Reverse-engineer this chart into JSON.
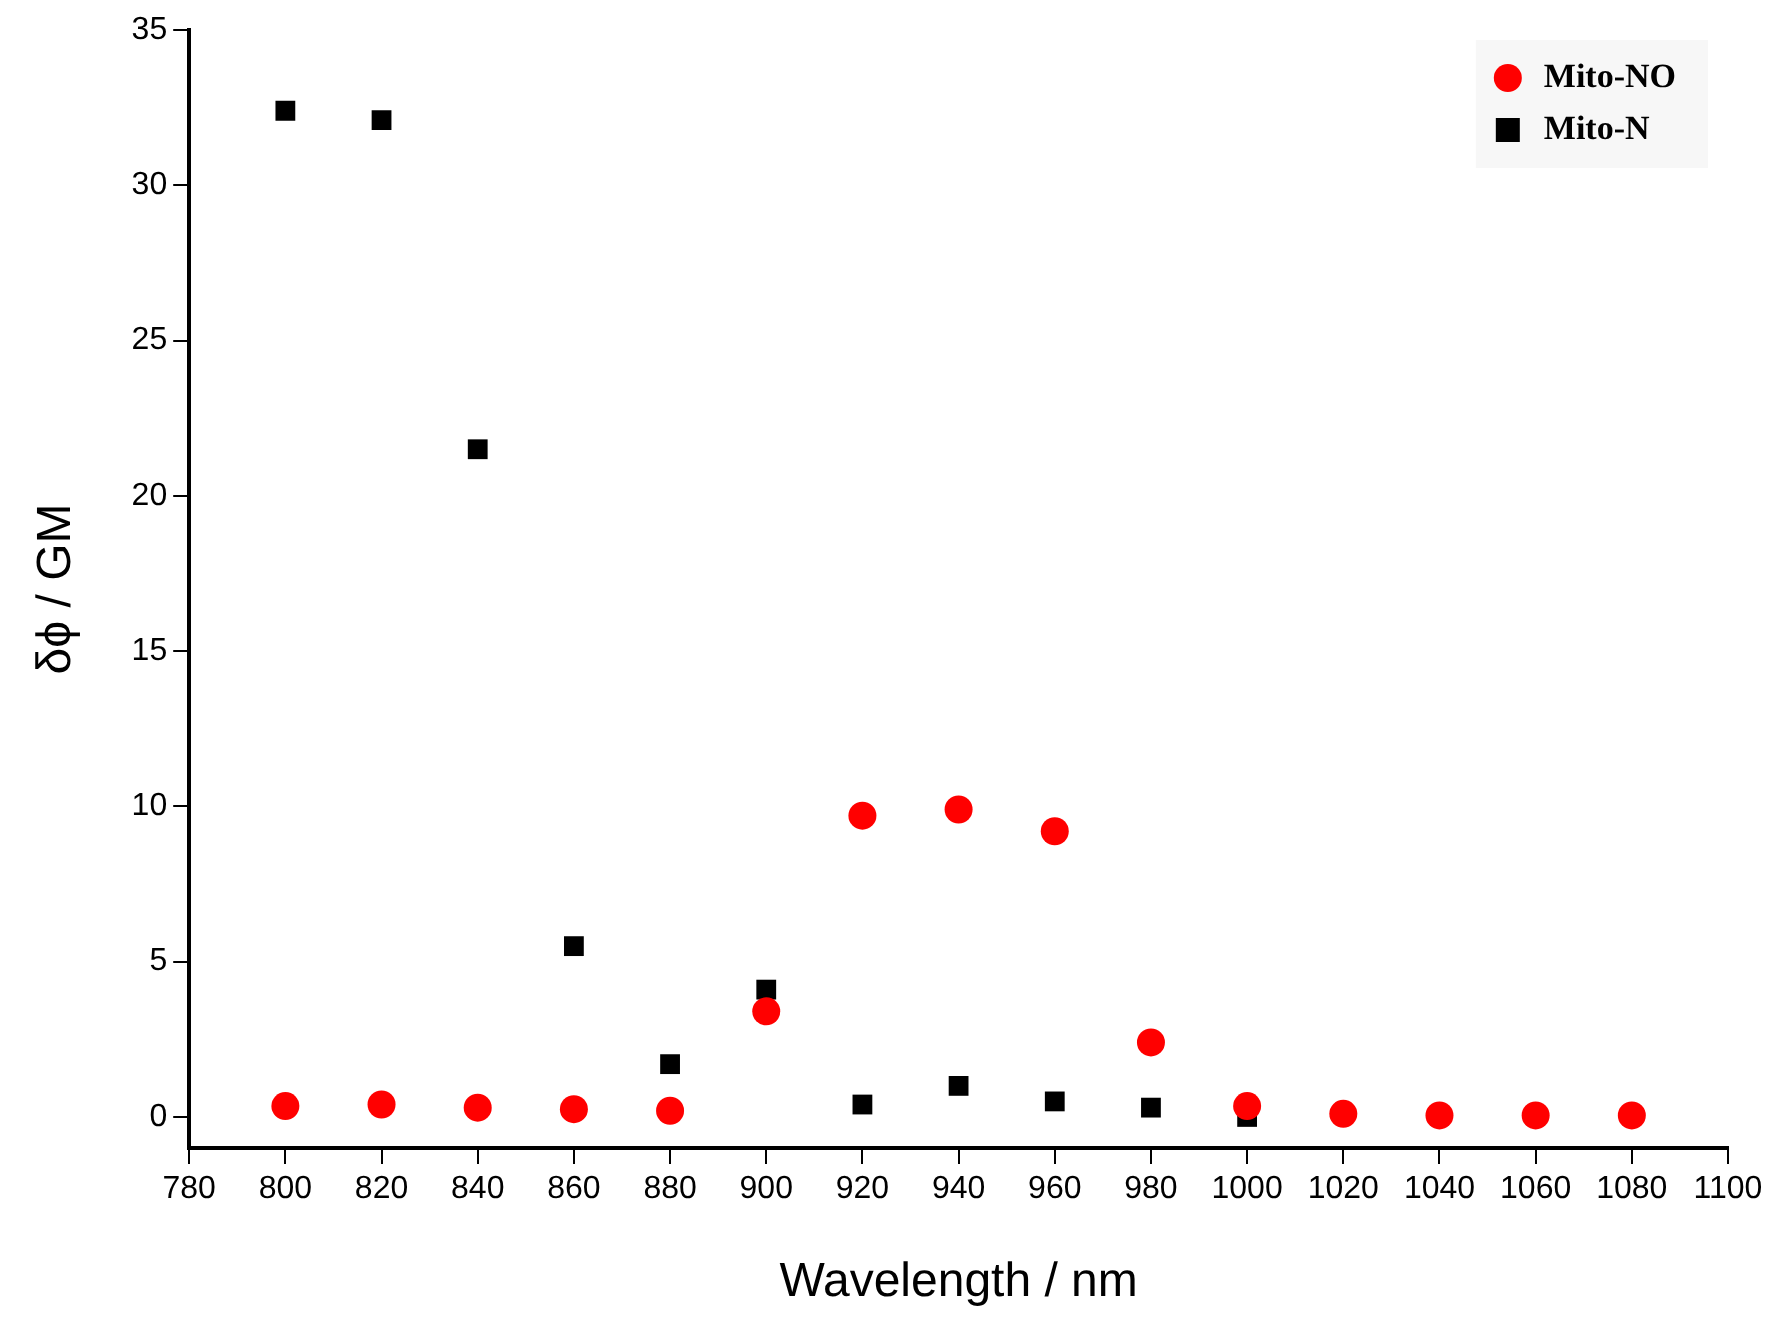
{
  "chart_data": {
    "type": "scatter",
    "xlabel": "Wavelength / nm",
    "ylabel": "δϕ / GM",
    "x": [
      800,
      820,
      840,
      860,
      880,
      900,
      920,
      940,
      960,
      980,
      1000,
      1020,
      1040,
      1060,
      1080
    ],
    "series": [
      {
        "name": "Mito-NO",
        "color": "#ff0000",
        "marker": "circle",
        "values": [
          0.35,
          0.4,
          0.3,
          0.25,
          0.2,
          3.4,
          9.7,
          9.9,
          9.2,
          2.4,
          0.35,
          0.1,
          0.05,
          0.05,
          0.05
        ]
      },
      {
        "name": "Mito-N",
        "color": "#000000",
        "marker": "square",
        "values": [
          32.4,
          32.1,
          21.5,
          5.5,
          1.7,
          4.1,
          0.4,
          1.0,
          0.5,
          0.3,
          0.0,
          null,
          null,
          null,
          null
        ]
      }
    ],
    "xlim": [
      780,
      1100
    ],
    "xticks": [
      780,
      800,
      820,
      840,
      860,
      880,
      900,
      920,
      940,
      960,
      980,
      1000,
      1020,
      1040,
      1060,
      1080,
      1100
    ],
    "ylim": [
      -1,
      35
    ],
    "yticks": [
      0,
      5,
      10,
      15,
      20,
      25,
      30,
      35
    ],
    "grid": false,
    "legend": "top right"
  }
}
